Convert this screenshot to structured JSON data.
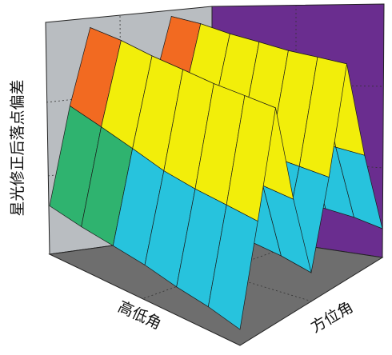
{
  "chart_data": {
    "type": "surface3d",
    "z_label": "星光修正后落点偏差",
    "x_label": "高低角",
    "y_label": "方位角",
    "z": [
      [
        0.15,
        0.6,
        0.95,
        0.6,
        0.2,
        0.6,
        0.95,
        0.6,
        0.2
      ],
      [
        0.12,
        0.55,
        0.92,
        0.55,
        0.18,
        0.55,
        0.92,
        0.55,
        0.18
      ],
      [
        0.1,
        0.5,
        0.88,
        0.5,
        0.15,
        0.5,
        0.88,
        0.5,
        0.15
      ],
      [
        0.08,
        0.45,
        0.85,
        0.45,
        0.12,
        0.45,
        0.85,
        0.45,
        0.12
      ],
      [
        0.05,
        0.42,
        0.82,
        0.42,
        0.1,
        0.42,
        0.82,
        0.42,
        0.1
      ],
      [
        0.03,
        0.4,
        0.8,
        0.4,
        0.08,
        0.4,
        0.8,
        0.4,
        0.08
      ],
      [
        0.0,
        0.38,
        0.78,
        0.38,
        0.05,
        0.38,
        0.78,
        0.38,
        0.05
      ]
    ],
    "zlim": [
      0,
      1
    ],
    "colors": [
      "#1f5fbf",
      "#27c3dd",
      "#2fb36f",
      "#45b84a",
      "#f2ee0a",
      "#f26a21",
      "#e8141c"
    ],
    "left_wall_color": "#b9bdc1",
    "right_wall_color": "#6a2d8f",
    "floor_color": "#6e6e6e"
  }
}
